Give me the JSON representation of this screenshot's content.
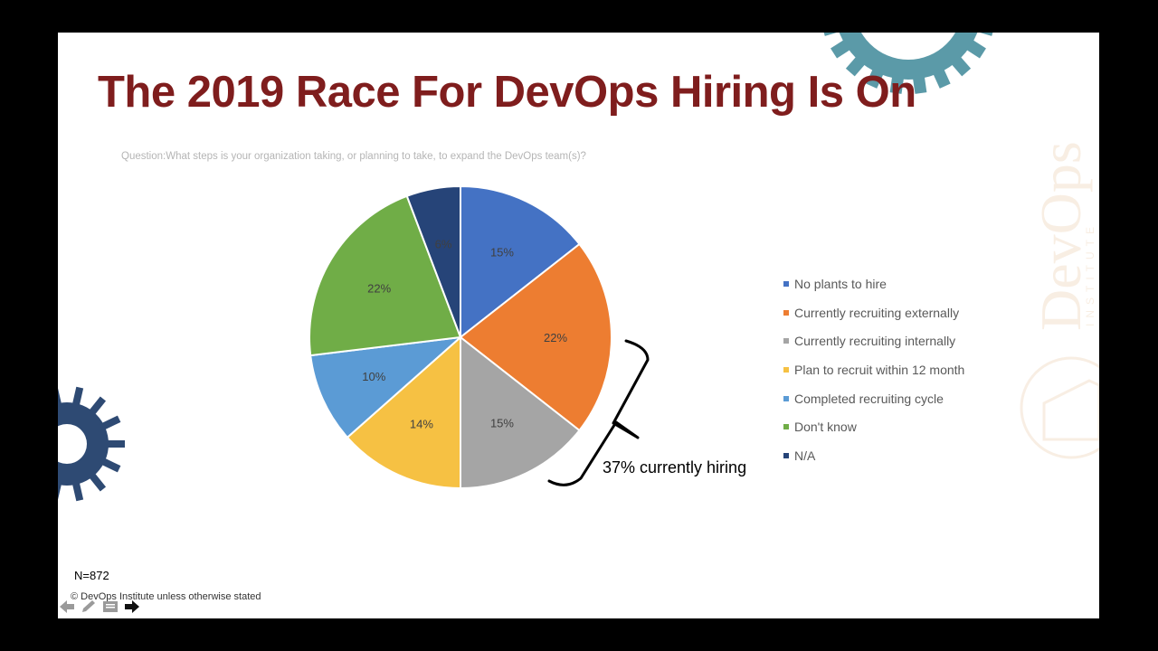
{
  "slide": {
    "title": "The 2019 Race For DevOps Hiring Is On",
    "question": "Question:What steps is your organization taking, or planning to take, to expand the DevOps team(s)?",
    "sample_size": "N=872",
    "footer": "© DevOps Institute unless otherwise stated",
    "annotation": "37% currently hiring"
  },
  "colors": {
    "title": "#7f1d1d",
    "gear_teal": "#5b9aa8",
    "gear_navy": "#2e4a73"
  },
  "icons": [
    "back-arrow-icon",
    "pen-icon",
    "menu-icon",
    "pointer-icon"
  ],
  "chart_data": {
    "type": "pie",
    "title": "",
    "start_angle": 0,
    "slices": [
      {
        "label": "No plants to hire",
        "value": 15,
        "text": "15%",
        "color": "#4472c4"
      },
      {
        "label": "Currently recruiting externally",
        "value": 22,
        "text": "22%",
        "color": "#ed7d31"
      },
      {
        "label": "Currently recruiting internally",
        "value": 15,
        "text": "15%",
        "color": "#a5a5a5"
      },
      {
        "label": "Plan to recruit within 12 month",
        "value": 14,
        "text": "14%",
        "color": "#f6c143"
      },
      {
        "label": "Completed recruiting cycle",
        "value": 10,
        "text": "10%",
        "color": "#5b9bd5"
      },
      {
        "label": "Don't  know",
        "value": 22,
        "text": "22%",
        "color": "#70ad47"
      },
      {
        "label": "N/A",
        "value": 6,
        "text": "6%",
        "color": "#264478"
      }
    ],
    "legend_position": "right"
  }
}
